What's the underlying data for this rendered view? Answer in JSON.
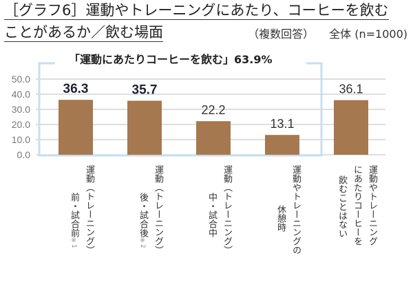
{
  "header": {
    "title_line1": "［グラフ6］運動やトレーニングにあたり、コーヒーを飲む",
    "title_line2": "ことがあるか／飲む場面",
    "answer_type": "（複数回答）",
    "sample": "全体 (n=1000)"
  },
  "highlight": "「運動にあたりコーヒーを飲む」63.9%",
  "chart_data": {
    "type": "bar",
    "title": "運動やトレーニングにあたり、コーヒーを飲むことがあるか／飲む場面",
    "ylim": [
      0,
      50
    ],
    "yticks": [
      "50.0",
      "40.0",
      "30.0",
      "20.0",
      "10.0",
      "0.0"
    ],
    "grid": true,
    "bar_color": "#a67850",
    "bracket_color": "#c9def0",
    "categories": [
      {
        "cols": [
          "運動（トレーニング）",
          "前・試合前"
        ],
        "note": "※1"
      },
      {
        "cols": [
          "運動（トレーニング）",
          "後・試合後"
        ],
        "note": "※2"
      },
      {
        "cols": [
          "運動（トレーニング）",
          "中・試合中"
        ],
        "note": ""
      },
      {
        "cols": [
          "運動やトレーニングの",
          "休憩時"
        ],
        "note": ""
      },
      {
        "cols": [
          "運動やトレーニング",
          "にあたりコーヒーを",
          "飲むことはない"
        ],
        "note": ""
      }
    ],
    "values": [
      36.3,
      35.7,
      22.2,
      13.1,
      36.1
    ],
    "value_labels": [
      "36.3",
      "35.7",
      "22.2",
      "13.1",
      "36.1"
    ],
    "bold_labels": [
      true,
      true,
      false,
      false,
      false
    ]
  }
}
